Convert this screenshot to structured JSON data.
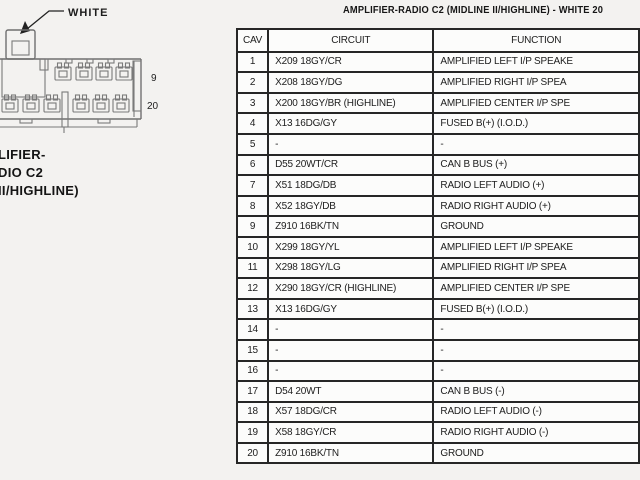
{
  "page": {
    "title": "AMPLIFIER-RADIO C2 (MIDLINE II/HIGHLINE) - WHITE 20"
  },
  "connector": {
    "color_label": "WHITE",
    "top_row_pin_label": "9",
    "bottom_row_pin_label": "20",
    "caption_lines": [
      "LIFIER-",
      "DIO C2",
      "II/HIGHLINE)"
    ]
  },
  "table": {
    "headers": [
      "CAV",
      "CIRCUIT",
      "FUNCTION"
    ],
    "rows": [
      {
        "cav": "1",
        "circuit": "X209 18GY/CR",
        "function": "AMPLIFIED LEFT I/P SPEAKE"
      },
      {
        "cav": "2",
        "circuit": "X208 18GY/DG",
        "function": "AMPLIFIED RIGHT I/P SPEA"
      },
      {
        "cav": "3",
        "circuit": "X200 18GY/BR (HIGHLINE)",
        "function": "AMPLIFIED CENTER I/P SPE"
      },
      {
        "cav": "4",
        "circuit": "X13 16DG/GY",
        "function": "FUSED B(+) (I.O.D.)"
      },
      {
        "cav": "5",
        "circuit": "-",
        "function": "-"
      },
      {
        "cav": "6",
        "circuit": "D55 20WT/CR",
        "function": "CAN B BUS (+)"
      },
      {
        "cav": "7",
        "circuit": "X51 18DG/DB",
        "function": "RADIO LEFT AUDIO (+)"
      },
      {
        "cav": "8",
        "circuit": "X52 18GY/DB",
        "function": "RADIO RIGHT AUDIO (+)"
      },
      {
        "cav": "9",
        "circuit": "Z910 16BK/TN",
        "function": "GROUND"
      },
      {
        "cav": "10",
        "circuit": "X299 18GY/YL",
        "function": "AMPLIFIED LEFT I/P SPEAKE"
      },
      {
        "cav": "11",
        "circuit": "X298 18GY/LG",
        "function": "AMPLIFIED RIGHT I/P SPEA"
      },
      {
        "cav": "12",
        "circuit": "X290 18GY/CR (HIGHLINE)",
        "function": "AMPLIFIED CENTER I/P SPE"
      },
      {
        "cav": "13",
        "circuit": "X13 16DG/GY",
        "function": "FUSED B(+) (I.O.D.)"
      },
      {
        "cav": "14",
        "circuit": "-",
        "function": "-"
      },
      {
        "cav": "15",
        "circuit": "-",
        "function": "-"
      },
      {
        "cav": "16",
        "circuit": "-",
        "function": "-"
      },
      {
        "cav": "17",
        "circuit": "D54 20WT",
        "function": "CAN B BUS (-)"
      },
      {
        "cav": "18",
        "circuit": "X57 18DG/CR",
        "function": "RADIO LEFT AUDIO (-)"
      },
      {
        "cav": "19",
        "circuit": "X58 18GY/CR",
        "function": "RADIO RIGHT AUDIO (-)"
      },
      {
        "cav": "20",
        "circuit": "Z910 16BK/TN",
        "function": "GROUND"
      }
    ]
  },
  "colors": {
    "page_bg": "#f3f2f0",
    "cell_bg": "#fcfcfb",
    "table_border": "#262626",
    "drawing_stroke": "#6f6f6f",
    "text": "#1c1c1c"
  }
}
